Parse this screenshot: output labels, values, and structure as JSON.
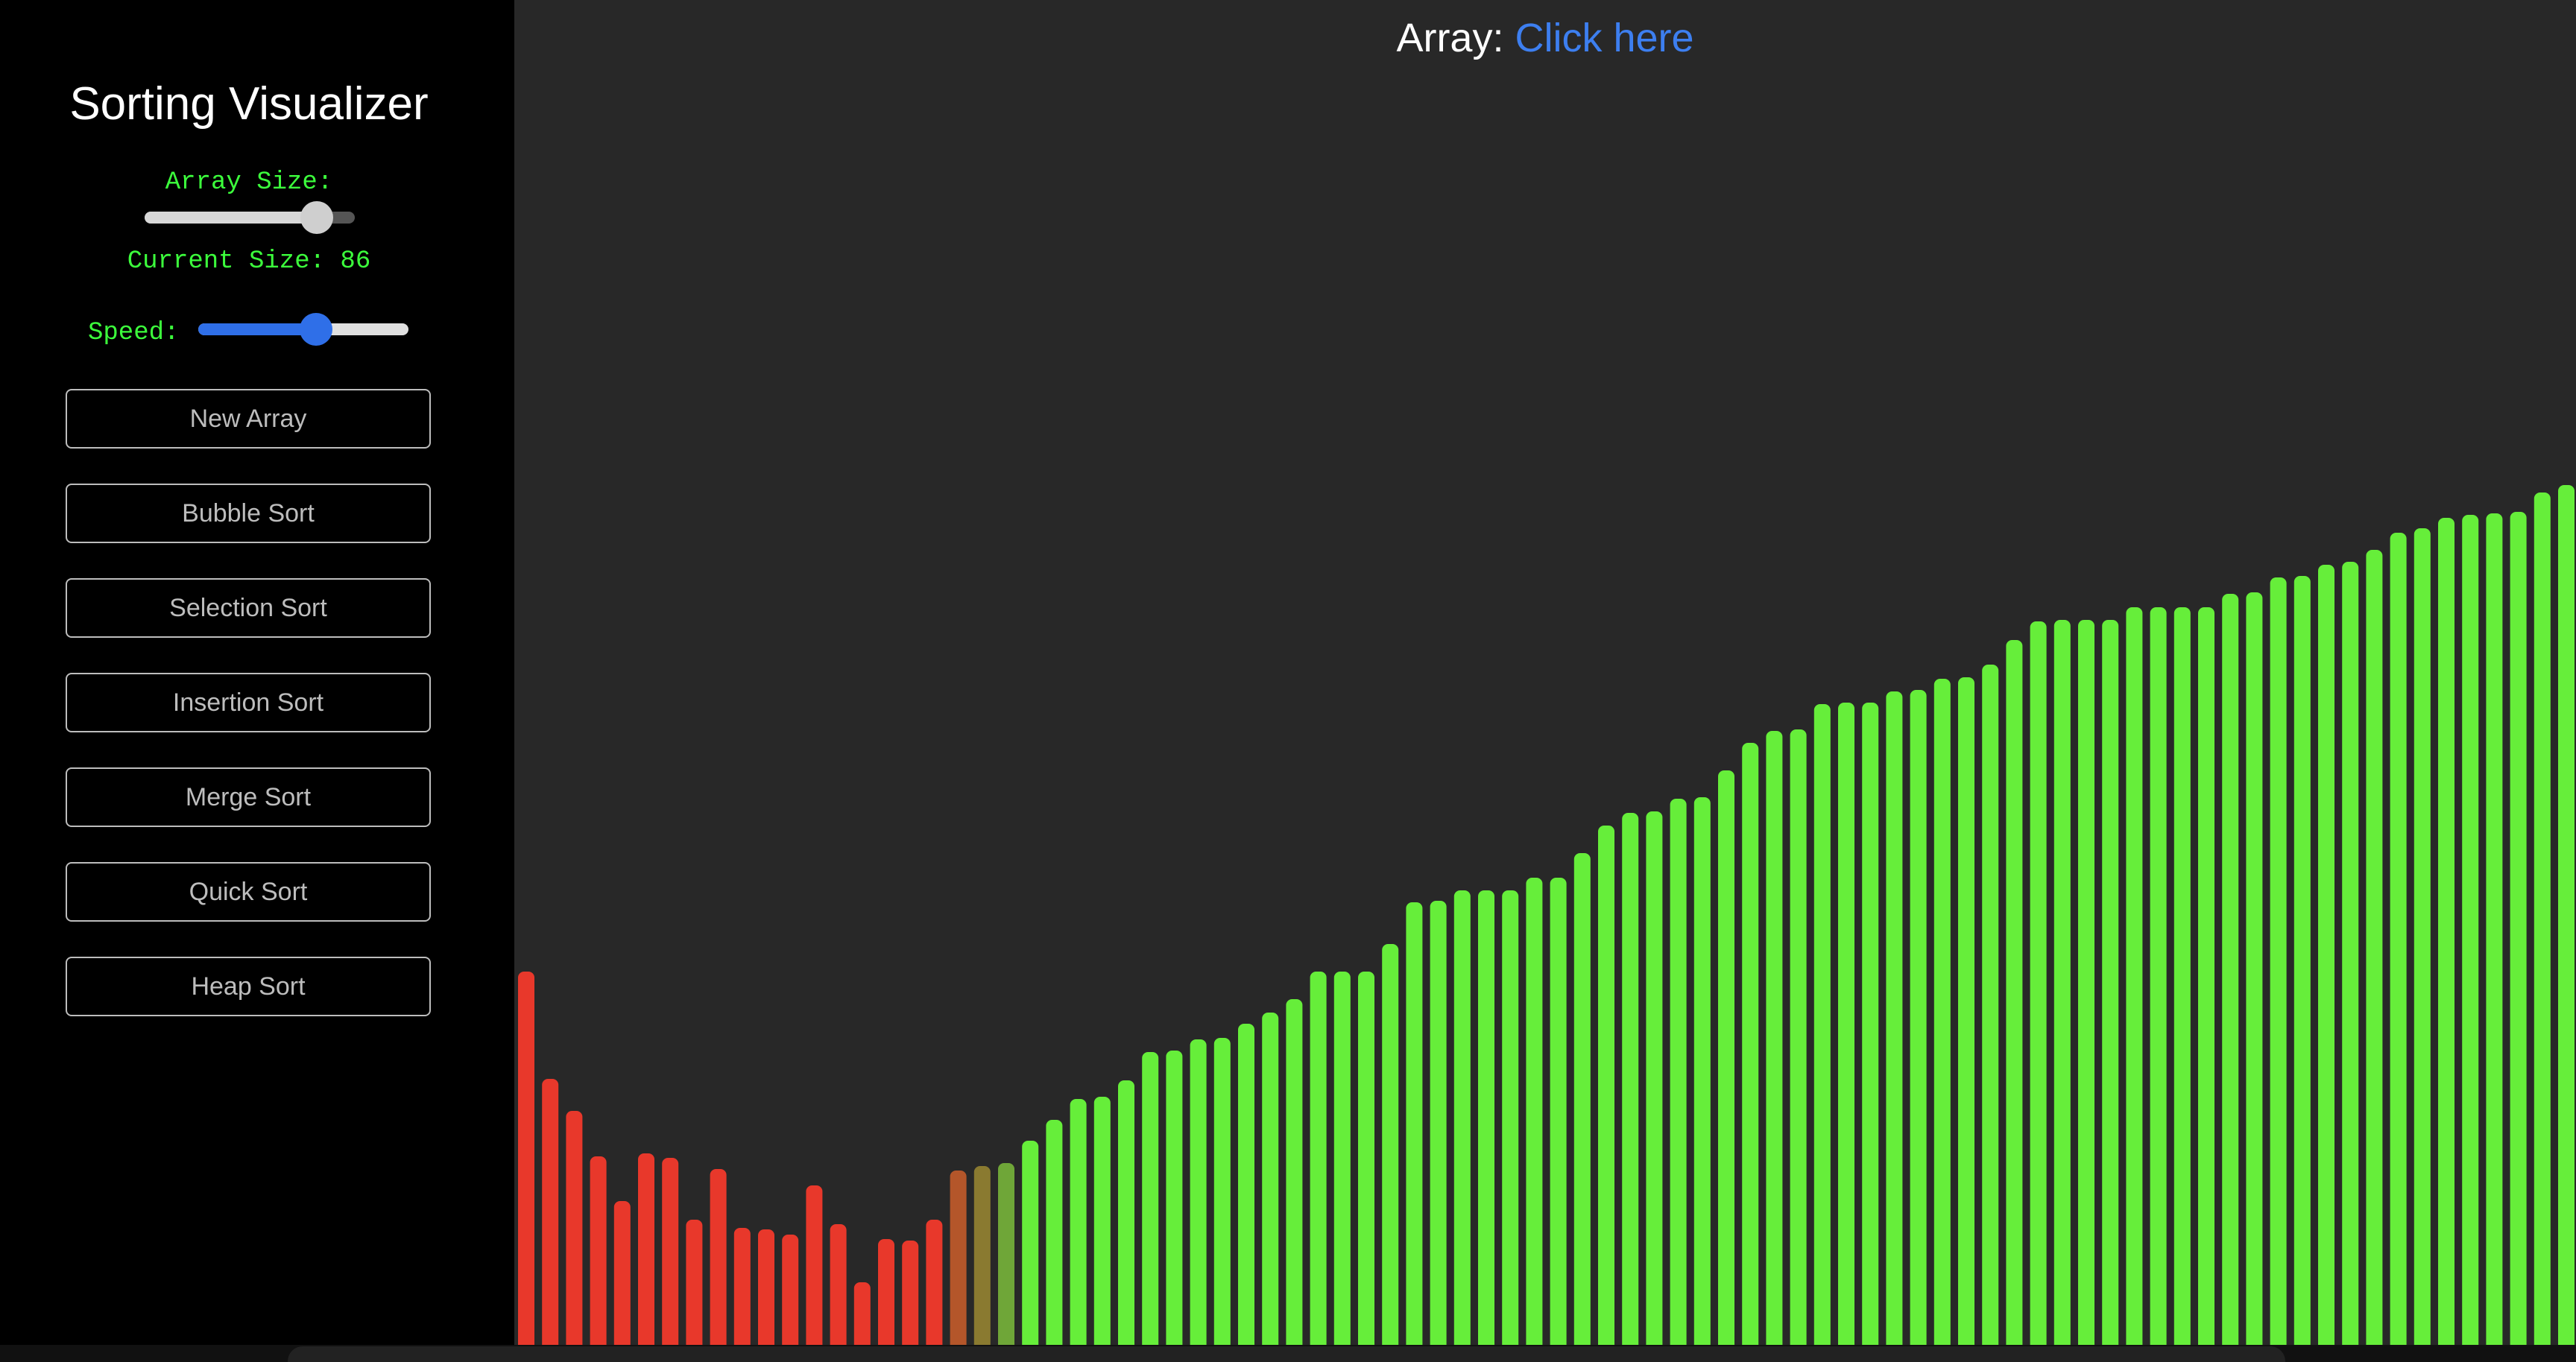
{
  "sidebar": {
    "title": "Sorting Visualizer",
    "array_size_label": "Array Size:",
    "current_size_label": "Current Size: 86",
    "speed_label": "Speed:",
    "array_size_value": 0.82,
    "speed_value": 0.56,
    "buttons": [
      "New Array",
      "Bubble Sort",
      "Selection Sort",
      "Insertion Sort",
      "Merge Sort",
      "Quick Sort",
      "Heap Sort"
    ]
  },
  "main": {
    "array_prefix": "Array:",
    "array_link": "Click here"
  },
  "colors": {
    "unsorted": "#e8382b",
    "sorted": "#66ee3a",
    "transition": [
      "#b4562a",
      "#8a7a30",
      "#6fa638"
    ]
  },
  "chart_data": {
    "type": "bar",
    "values": [
      501,
      357,
      314,
      253,
      193,
      257,
      251,
      168,
      236,
      157,
      155,
      148,
      214,
      162,
      84,
      142,
      140,
      168,
      234,
      240,
      244,
      274,
      302,
      330,
      333,
      355,
      393,
      395,
      410,
      412,
      431,
      446,
      464,
      501,
      501,
      501,
      538,
      594,
      596,
      610,
      610,
      610,
      627,
      627,
      660,
      697,
      714,
      716,
      733,
      735,
      771,
      808,
      824,
      826,
      860,
      862,
      862,
      877,
      879,
      894,
      896,
      913,
      946,
      971,
      973,
      973,
      973,
      990,
      990,
      990,
      990,
      1008,
      1010,
      1030,
      1032,
      1047,
      1051,
      1067,
      1090,
      1096,
      1110,
      1114,
      1116,
      1118,
      1144,
      1154
    ],
    "status": [
      "unsorted",
      "unsorted",
      "unsorted",
      "unsorted",
      "unsorted",
      "unsorted",
      "unsorted",
      "unsorted",
      "unsorted",
      "unsorted",
      "unsorted",
      "unsorted",
      "unsorted",
      "unsorted",
      "unsorted",
      "unsorted",
      "unsorted",
      "unsorted",
      "t0",
      "t1",
      "t2",
      "sorted",
      "sorted",
      "sorted",
      "sorted",
      "sorted",
      "sorted",
      "sorted",
      "sorted",
      "sorted",
      "sorted",
      "sorted",
      "sorted",
      "sorted",
      "sorted",
      "sorted",
      "sorted",
      "sorted",
      "sorted",
      "sorted",
      "sorted",
      "sorted",
      "sorted",
      "sorted",
      "sorted",
      "sorted",
      "sorted",
      "sorted",
      "sorted",
      "sorted",
      "sorted",
      "sorted",
      "sorted",
      "sorted",
      "sorted",
      "sorted",
      "sorted",
      "sorted",
      "sorted",
      "sorted",
      "sorted",
      "sorted",
      "sorted",
      "sorted",
      "sorted",
      "sorted",
      "sorted",
      "sorted",
      "sorted",
      "sorted",
      "sorted",
      "sorted",
      "sorted",
      "sorted",
      "sorted",
      "sorted",
      "sorted",
      "sorted",
      "sorted",
      "sorted",
      "sorted",
      "sorted",
      "sorted",
      "sorted",
      "sorted",
      "sorted"
    ],
    "ylim": [
      0,
      1180
    ]
  }
}
